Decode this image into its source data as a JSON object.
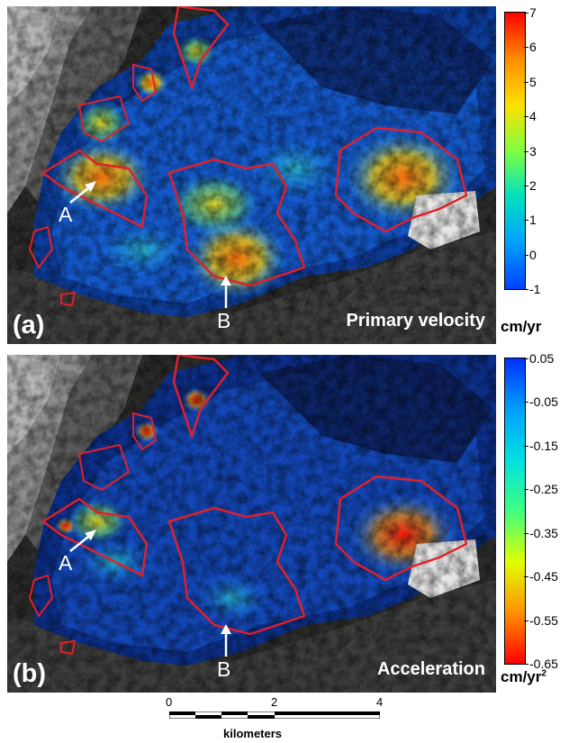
{
  "panels": {
    "a": {
      "label": "(a)",
      "title": "Primary velocity",
      "marker_a": "A",
      "marker_b": "B"
    },
    "b": {
      "label": "(b)",
      "title": "Acceleration",
      "marker_a": "A",
      "marker_b": "B"
    }
  },
  "colorbar_a": {
    "ticks": [
      "7",
      "6",
      "5",
      "4",
      "3",
      "2",
      "1",
      "0",
      "-1"
    ],
    "unit": "cm/yr",
    "colors": [
      "#ff0000",
      "#ff8c00",
      "#ffe000",
      "#80ff40",
      "#00e0c0",
      "#00a0ff",
      "#0040ff"
    ]
  },
  "colorbar_b": {
    "ticks": [
      "0.05",
      "-0.05",
      "-0.15",
      "-0.25",
      "-0.35",
      "-0.45",
      "-0.55",
      "-0.65"
    ],
    "unit": "cm/yr",
    "unit_sup": "2",
    "colors": [
      "#0030ff",
      "#00a0ff",
      "#00e0e0",
      "#40ff80",
      "#e0ff00",
      "#ff9000",
      "#ff0000"
    ]
  },
  "scale_bar": {
    "labels": [
      "0",
      "2",
      "4"
    ],
    "name": "kilometers"
  }
}
